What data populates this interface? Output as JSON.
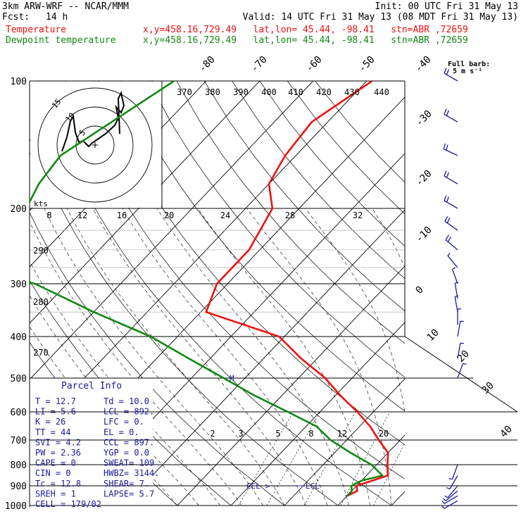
{
  "header": {
    "model": "3km ARW-WRF -- NCAR/MMM",
    "init": "Init: 00 UTC Fri 31 May 13",
    "fcst_label": "Fcst:",
    "fcst_value": "14 h",
    "valid": "Valid: 14 UTC Fri 31 May 13 (08 MDT Fri 31 May 13)",
    "temp_label": "Temperature",
    "temp_meta": "x,y=458.16,729.49   lat,lon= 45.44, -98.41   stn=ABR ,72659",
    "dew_label": "Dewpoint temperature",
    "dew_meta": "x,y=458.16,729.49   lat,lon= 45.44, -98.41   stn=ABR ,72659",
    "full_barb": "Full barb:",
    "full_barb_units": "5 m s⁻¹"
  },
  "colors": {
    "temperature": "#ee1111",
    "dewpoint": "#118811",
    "wind": "#1a1a9a",
    "cape_box": "#1a1a9a"
  },
  "chart_data": {
    "type": "line",
    "pressure_levels": [
      100,
      200,
      300,
      400,
      500,
      600,
      700,
      800,
      900,
      1000
    ],
    "isotherm_top_labels": [
      "-80",
      "-70",
      "-60",
      "-50",
      "-40"
    ],
    "isotherm_right_labels": [
      "-30",
      "-20",
      "-10",
      "0",
      "10",
      "20",
      "30",
      "40"
    ],
    "theta_e_labels": [
      "370",
      "380",
      "390",
      "400",
      "410",
      "420",
      "430",
      "440"
    ],
    "theta_labels": [
      "290",
      "280",
      "270"
    ],
    "mixing_ratio_labels": [
      "2",
      "3",
      "5",
      "8",
      "12",
      "20"
    ],
    "hodograph": {
      "units": "kts",
      "ring_labels": [
        "15",
        "10",
        "5"
      ],
      "speed_labels": [
        "8",
        "12",
        "16",
        "20",
        "24",
        "28",
        "32"
      ]
    },
    "series": [
      {
        "name": "Temperature",
        "points": [
          [
            100,
            -59
          ],
          [
            125,
            -63
          ],
          [
            150,
            -62
          ],
          [
            175,
            -60
          ],
          [
            200,
            -55
          ],
          [
            250,
            -52
          ],
          [
            300,
            -52
          ],
          [
            350,
            -49
          ],
          [
            400,
            -31
          ],
          [
            450,
            -23
          ],
          [
            500,
            -15
          ],
          [
            550,
            -9
          ],
          [
            600,
            -3
          ],
          [
            650,
            2
          ],
          [
            700,
            6
          ],
          [
            750,
            10
          ],
          [
            800,
            12
          ],
          [
            850,
            14
          ],
          [
            900,
            10
          ],
          [
            925,
            11
          ],
          [
            950,
            10
          ]
        ]
      },
      {
        "name": "Dewpoint temperature",
        "points": [
          [
            100,
            -96
          ],
          [
            150,
            -104
          ],
          [
            175,
            -103
          ],
          [
            200,
            -101
          ],
          [
            225,
            -101
          ],
          [
            250,
            -110
          ],
          [
            275,
            -101
          ],
          [
            300,
            -86
          ],
          [
            350,
            -70
          ],
          [
            400,
            -55
          ],
          [
            450,
            -44
          ],
          [
            500,
            -34
          ],
          [
            550,
            -25
          ],
          [
            600,
            -16
          ],
          [
            650,
            -8
          ],
          [
            700,
            -3
          ],
          [
            750,
            3
          ],
          [
            800,
            9
          ],
          [
            850,
            13
          ],
          [
            875,
            10
          ],
          [
            900,
            9
          ],
          [
            925,
            10
          ],
          [
            950,
            10
          ]
        ]
      }
    ],
    "markers": {
      "lcl_label": "LCL",
      "ccl_label": "CCL >",
      "marker_m": "M"
    },
    "parcel_info": {
      "title": "Parcel Info",
      "rows": [
        [
          "T  =    12.7",
          "Td =  10.0"
        ],
        [
          "LI =     5.6",
          "LCL =  892."
        ],
        [
          "K  =      26",
          "LFC =    0."
        ],
        [
          "TT =      44",
          "EL  =    0."
        ],
        [
          "SVI =    4.2",
          "CCL =  897."
        ],
        [
          "PW =    2.36",
          "YGP =   0.0"
        ],
        [
          "CAPE =     0",
          "SWEAT=  109"
        ],
        [
          "CIN =      0",
          "HWBZ= 3144."
        ],
        [
          "Tc =    12.8",
          "SHEAR=   7."
        ],
        [
          "SREH =     1",
          "LAPSE=  5.7"
        ],
        [
          "CELL = 179/02",
          ""
        ]
      ]
    },
    "wind_barbs": [
      {
        "p": 100,
        "dir": 300,
        "spd": 10
      },
      {
        "p": 125,
        "dir": 300,
        "spd": 10
      },
      {
        "p": 150,
        "dir": 295,
        "spd": 10
      },
      {
        "p": 175,
        "dir": 300,
        "spd": 10
      },
      {
        "p": 200,
        "dir": 300,
        "spd": 10
      },
      {
        "p": 225,
        "dir": 305,
        "spd": 10
      },
      {
        "p": 250,
        "dir": 310,
        "spd": 10
      },
      {
        "p": 275,
        "dir": 320,
        "spd": 5
      },
      {
        "p": 300,
        "dir": 340,
        "spd": 5
      },
      {
        "p": 325,
        "dir": 350,
        "spd": 5
      },
      {
        "p": 350,
        "dir": 350,
        "spd": 5
      },
      {
        "p": 375,
        "dir": 0,
        "spd": 5
      },
      {
        "p": 400,
        "dir": 10,
        "spd": 5
      },
      {
        "p": 450,
        "dir": 10,
        "spd": 5
      },
      {
        "p": 500,
        "dir": 20,
        "spd": 5
      },
      {
        "p": 800,
        "dir": 200,
        "spd": 5
      },
      {
        "p": 850,
        "dir": 210,
        "spd": 5
      },
      {
        "p": 900,
        "dir": 220,
        "spd": 5
      },
      {
        "p": 925,
        "dir": 230,
        "spd": 5
      },
      {
        "p": 950,
        "dir": 240,
        "spd": 5
      },
      {
        "p": 975,
        "dir": 240,
        "spd": 5
      }
    ]
  }
}
